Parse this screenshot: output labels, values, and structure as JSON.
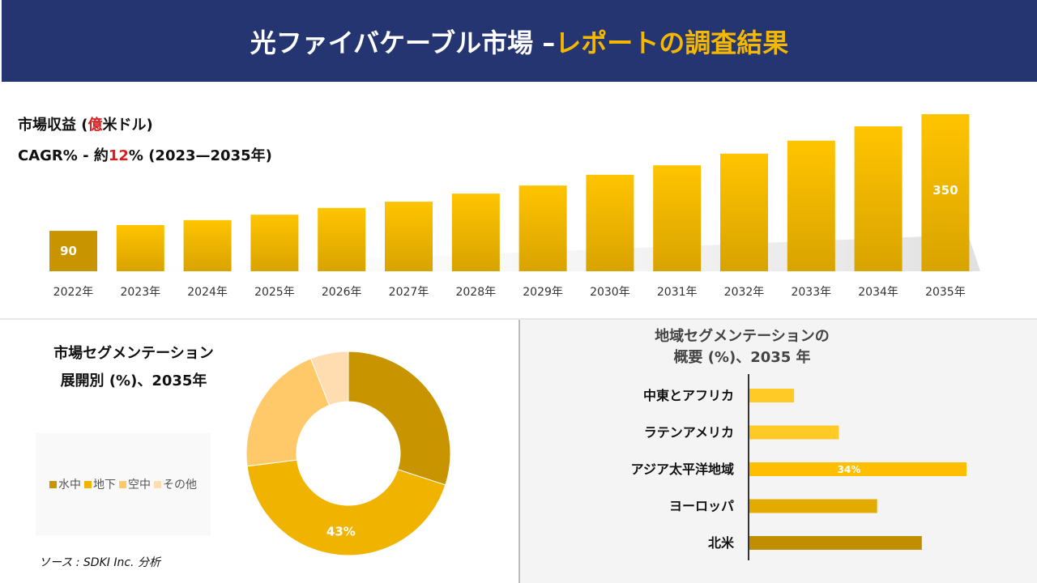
{
  "header": {
    "title_main": "光ファイバケーブル市場 –",
    "title_accent": "レポートの調査結果"
  },
  "revenue": {
    "title_prefix": "市場収益 (",
    "title_red": "億",
    "title_suffix": "米ドル)",
    "cagr_prefix": "CAGR% - 約",
    "cagr_red": "12",
    "cagr_suffix": "% (2023—2035年)"
  },
  "chart_data": [
    {
      "type": "bar",
      "title": "市場収益 (億米ドル)",
      "categories": [
        "2022年",
        "2023年",
        "2024年",
        "2025年",
        "2026年",
        "2027年",
        "2028年",
        "2029年",
        "2030年",
        "2031年",
        "2032年",
        "2033年",
        "2034年",
        "2035年"
      ],
      "values": [
        90,
        103,
        114,
        126,
        141,
        155,
        173,
        191,
        215,
        236,
        262,
        291,
        323,
        350
      ],
      "data_labels": {
        "2022年": "90",
        "2035年": "350"
      },
      "ylim": [
        0,
        350
      ],
      "grid": false
    },
    {
      "type": "pie",
      "title": "市場セグメンテーション 展開別 (%)、2035年",
      "categories": [
        "水中",
        "地下",
        "空中",
        "その他"
      ],
      "values": [
        30,
        43,
        21,
        6
      ],
      "data_labels": {
        "地下": "43%"
      },
      "colors": [
        "#c89500",
        "#f0b400",
        "#ffc96a",
        "#ffddb0"
      ],
      "legend": "left"
    },
    {
      "type": "bar",
      "orientation": "horizontal",
      "title": "地域セグメンテーションの 概要 (%)、2035 年",
      "categories": [
        "中東とアフリカ",
        "ラテンアメリカ",
        "アジア太平洋地域",
        "ヨーロッパ",
        "北米"
      ],
      "values": [
        7,
        14,
        34,
        20,
        27
      ],
      "data_labels": {
        "アジア太平洋地域": "34%"
      },
      "colors": [
        "#ffc926",
        "#ffc926",
        "#ffbf00",
        "#e3ab00",
        "#c08e00"
      ]
    }
  ],
  "left_title_1": "市場セグメンテーション",
  "left_title_2": "展開別 (%)、2035年",
  "right_title_1": "地域セグメンテーションの",
  "right_title_2": "概要 (%)、2035 年",
  "source": "ソース : SDKI Inc. 分析"
}
